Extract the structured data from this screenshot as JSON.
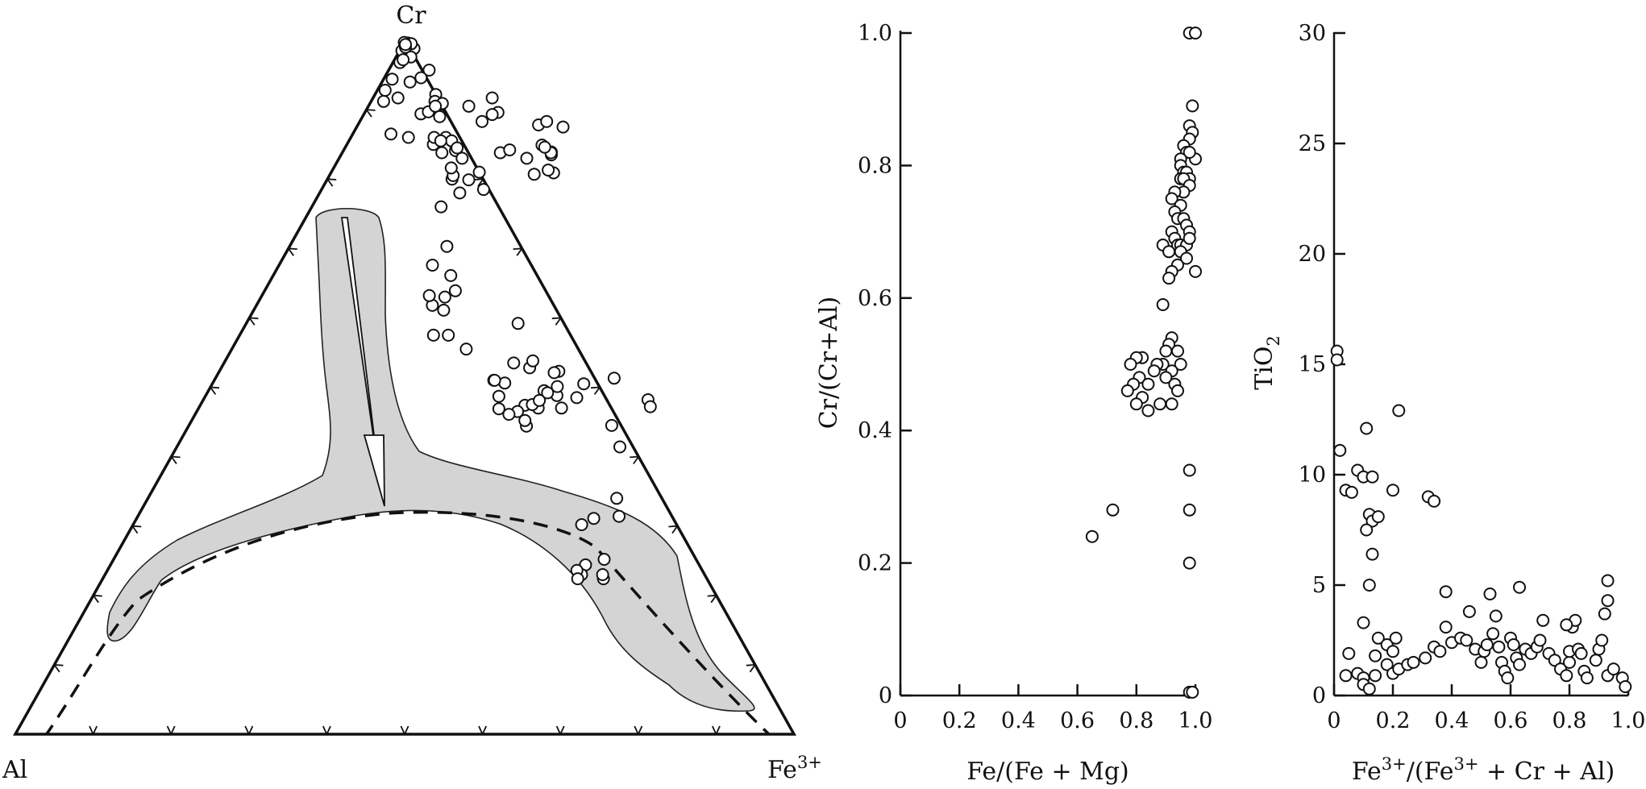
{
  "ternary": {
    "apex_top": "Cr",
    "apex_left": "Al",
    "apex_right": "Fe",
    "apex_right_sup": "3+"
  },
  "scatter1": {
    "ylabel": "Cr/(Cr+Al)",
    "xlabel": "Fe/(Fe + Mg)"
  },
  "scatter2": {
    "ylabel_main": "TiO",
    "ylabel_sub": "2",
    "xlabel_p1": "Fe",
    "xlabel_s1": "3+",
    "xlabel_p2": "/(Fe",
    "xlabel_s2": "3+",
    "xlabel_p3": " + Cr + Al)"
  },
  "chart_data": [
    {
      "type": "scatter",
      "subtype": "ternary",
      "vertices": {
        "top": "Cr",
        "left": "Al",
        "right": "Fe3+"
      },
      "grid": false,
      "points": [
        [
          0.643,
          0.224
        ],
        [
          0.639,
          0.23
        ],
        [
          0.618,
          0.314
        ],
        [
          0.602,
          0.34
        ],
        [
          0.587,
          0.311
        ],
        [
          0.576,
          0.302
        ],
        [
          0.61,
          0.244
        ],
        [
          0.63,
          0.252
        ],
        [
          0.612,
          0.23
        ],
        [
          0.603,
          0.236
        ],
        [
          0.61,
          0.224
        ],
        [
          0.434,
          0.444
        ],
        [
          0.428,
          0.452
        ],
        [
          0.436,
          0.47
        ],
        [
          0.451,
          0.488
        ],
        [
          0.477,
          0.505
        ],
        [
          0.512,
          0.513
        ],
        [
          0.571,
          0.482
        ],
        [
          0.579,
          0.472
        ],
        [
          0.569,
          0.414
        ],
        [
          0.543,
          0.445
        ],
        [
          0.466,
          0.47
        ],
        [
          0.478,
          0.485
        ],
        [
          0.436,
          0.523
        ],
        [
          0.431,
          0.521
        ],
        [
          0.445,
          0.501
        ],
        [
          0.431,
          0.495
        ],
        [
          0.437,
          0.492
        ],
        [
          0.417,
          0.474
        ],
        [
          0.426,
          0.475
        ],
        [
          0.432,
          0.481
        ],
        [
          0.412,
          0.465
        ],
        [
          0.403,
          0.461
        ],
        [
          0.386,
          0.469
        ],
        [
          0.377,
          0.487
        ],
        [
          0.375,
          0.506
        ],
        [
          0.396,
          0.528
        ],
        [
          0.372,
          0.535
        ],
        [
          0.359,
          0.51
        ],
        [
          0.36,
          0.51
        ],
        [
          0.395,
          0.538
        ],
        [
          0.349,
          0.592
        ],
        [
          0.301,
          0.555
        ],
        [
          0.268,
          0.575
        ],
        [
          0.249,
          0.575
        ],
        [
          0.244,
          0.611
        ],
        [
          0.236,
          0.63
        ],
        [
          0.245,
          0.639
        ],
        [
          0.226,
          0.618
        ],
        [
          0.215,
          0.632
        ],
        [
          0.228,
          0.661
        ],
        [
          0.197,
          0.676
        ],
        [
          0.202,
          0.703
        ],
        [
          0.166,
          0.76
        ],
        [
          0.16,
          0.8
        ],
        [
          0.18,
          0.78
        ],
        [
          0.182,
          0.799
        ],
        [
          0.159,
          0.805
        ],
        [
          0.151,
          0.816
        ],
        [
          0.144,
          0.841
        ],
        [
          0.158,
          0.83
        ],
        [
          0.203,
          0.838
        ],
        [
          0.213,
          0.842
        ],
        [
          0.241,
          0.83
        ],
        [
          0.232,
          0.878
        ],
        [
          0.251,
          0.849
        ],
        [
          0.24,
          0.883
        ],
        [
          0.265,
          0.875
        ],
        [
          0.27,
          0.835
        ],
        [
          0.268,
          0.839
        ],
        [
          0.286,
          0.809
        ],
        [
          0.268,
          0.838
        ],
        [
          0.256,
          0.846
        ],
        [
          0.277,
          0.813
        ],
        [
          0.262,
          0.807
        ],
        [
          0.157,
          0.883
        ],
        [
          0.171,
          0.896
        ],
        [
          0.165,
          0.893
        ],
        [
          0.153,
          0.917
        ],
        [
          0.129,
          0.905
        ],
        [
          0.073,
          0.894
        ],
        [
          0.074,
          0.86
        ],
        [
          0.049,
          0.865
        ],
        [
          0.016,
          0.912
        ],
        [
          0.011,
          0.944
        ],
        [
          0.009,
          0.968
        ],
        [
          0.052,
          0.957
        ],
        [
          0.047,
          0.946
        ],
        [
          0.017,
          0.988
        ],
        [
          0.019,
          0.976
        ],
        [
          0.003,
          0.985
        ],
        [
          0.011,
          0.972
        ],
        [
          0.005,
          0.996
        ],
        [
          0.036,
          0.94
        ],
        [
          0.032,
          0.917
        ],
        [
          0.01,
          0.928
        ],
        [
          0.078,
          0.922
        ],
        [
          0.082,
          0.912
        ],
        [
          0.093,
          0.909
        ],
        [
          0.081,
          0.897
        ],
        [
          0.086,
          0.905
        ],
        [
          0.099,
          0.89
        ],
        [
          0.122,
          0.86
        ],
        [
          0.132,
          0.855
        ],
        [
          0.144,
          0.845
        ],
        [
          0.128,
          0.838
        ],
        [
          0.111,
          0.85
        ],
        [
          0.107,
          0.86
        ],
        [
          0.118,
          0.855
        ],
        [
          0.19,
          0.81
        ],
        [
          0.208,
          0.785
        ],
        [
          0.01,
          0.995
        ],
        [
          0.005,
          0.99
        ],
        [
          0.0,
          0.997
        ],
        [
          0.003,
          0.994
        ]
      ],
      "shaded_field": "gray envelope",
      "trend": "dashed curve",
      "arrow": "downward"
    },
    {
      "type": "scatter",
      "xlabel": "Fe/(Fe + Mg)",
      "ylabel": "Cr/(Cr+Al)",
      "xlim": [
        0,
        1.0
      ],
      "ylim": [
        0,
        1.0
      ],
      "x_ticks": [
        "0",
        "0.2",
        "0.4",
        "0.6",
        "0.8",
        "1.0"
      ],
      "y_ticks": [
        "0",
        "0.2",
        "0.4",
        "0.6",
        "0.8",
        "1.0"
      ],
      "grid": false,
      "points": [
        [
          0.98,
          1.0
        ],
        [
          1.0,
          1.0
        ],
        [
          0.99,
          0.89
        ],
        [
          0.98,
          0.86
        ],
        [
          0.99,
          0.85
        ],
        [
          0.98,
          0.84
        ],
        [
          1.0,
          0.81
        ],
        [
          0.96,
          0.83
        ],
        [
          0.97,
          0.82
        ],
        [
          0.98,
          0.82
        ],
        [
          0.95,
          0.81
        ],
        [
          0.95,
          0.8
        ],
        [
          0.96,
          0.79
        ],
        [
          0.97,
          0.79
        ],
        [
          0.98,
          0.78
        ],
        [
          0.95,
          0.78
        ],
        [
          0.96,
          0.78
        ],
        [
          0.98,
          0.77
        ],
        [
          0.96,
          0.76
        ],
        [
          0.93,
          0.76
        ],
        [
          0.92,
          0.75
        ],
        [
          0.95,
          0.74
        ],
        [
          0.93,
          0.73
        ],
        [
          0.94,
          0.72
        ],
        [
          0.96,
          0.72
        ],
        [
          0.97,
          0.71
        ],
        [
          0.98,
          0.7
        ],
        [
          0.92,
          0.7
        ],
        [
          0.93,
          0.69
        ],
        [
          0.94,
          0.68
        ],
        [
          0.95,
          0.68
        ],
        [
          0.97,
          0.68
        ],
        [
          0.98,
          0.69
        ],
        [
          0.89,
          0.68
        ],
        [
          0.91,
          0.67
        ],
        [
          0.95,
          0.67
        ],
        [
          0.97,
          0.66
        ],
        [
          0.94,
          0.65
        ],
        [
          0.92,
          0.64
        ],
        [
          1.0,
          0.64
        ],
        [
          0.91,
          0.63
        ],
        [
          0.89,
          0.59
        ],
        [
          0.92,
          0.54
        ],
        [
          0.91,
          0.53
        ],
        [
          0.9,
          0.52
        ],
        [
          0.94,
          0.52
        ],
        [
          0.89,
          0.5
        ],
        [
          0.95,
          0.5
        ],
        [
          0.87,
          0.5
        ],
        [
          0.82,
          0.51
        ],
        [
          0.8,
          0.51
        ],
        [
          0.78,
          0.5
        ],
        [
          0.92,
          0.49
        ],
        [
          0.86,
          0.49
        ],
        [
          0.9,
          0.48
        ],
        [
          0.81,
          0.48
        ],
        [
          0.79,
          0.47
        ],
        [
          0.93,
          0.47
        ],
        [
          0.84,
          0.47
        ],
        [
          0.94,
          0.46
        ],
        [
          0.77,
          0.46
        ],
        [
          0.82,
          0.45
        ],
        [
          0.88,
          0.44
        ],
        [
          0.92,
          0.44
        ],
        [
          0.8,
          0.44
        ],
        [
          0.84,
          0.43
        ],
        [
          0.98,
          0.34
        ],
        [
          0.72,
          0.28
        ],
        [
          0.98,
          0.28
        ],
        [
          0.65,
          0.24
        ],
        [
          0.98,
          0.2
        ],
        [
          0.98,
          0.005
        ],
        [
          0.99,
          0.005
        ]
      ]
    },
    {
      "type": "scatter",
      "xlabel": "Fe3+/(Fe3+ + Cr + Al)",
      "ylabel": "TiO2",
      "xlim": [
        0,
        1.0
      ],
      "ylim": [
        0,
        30
      ],
      "x_ticks": [
        "0",
        "0.2",
        "0.4",
        "0.6",
        "0.8",
        "1.0"
      ],
      "y_ticks": [
        "0",
        "5",
        "10",
        "15",
        "20",
        "25",
        "30"
      ],
      "grid": false,
      "points": [
        [
          0.01,
          15.6
        ],
        [
          0.01,
          15.2
        ],
        [
          0.02,
          11.1
        ],
        [
          0.11,
          12.1
        ],
        [
          0.22,
          12.9
        ],
        [
          0.04,
          9.3
        ],
        [
          0.06,
          9.2
        ],
        [
          0.08,
          10.2
        ],
        [
          0.1,
          9.9
        ],
        [
          0.13,
          9.9
        ],
        [
          0.2,
          9.3
        ],
        [
          0.32,
          9.0
        ],
        [
          0.34,
          8.8
        ],
        [
          0.12,
          8.2
        ],
        [
          0.13,
          7.9
        ],
        [
          0.15,
          8.1
        ],
        [
          0.11,
          7.5
        ],
        [
          0.13,
          6.4
        ],
        [
          0.12,
          5.0
        ],
        [
          0.1,
          3.3
        ],
        [
          0.38,
          4.7
        ],
        [
          0.53,
          4.6
        ],
        [
          0.63,
          4.9
        ],
        [
          0.93,
          5.2
        ],
        [
          0.93,
          4.3
        ],
        [
          0.05,
          1.9
        ],
        [
          0.04,
          0.9
        ],
        [
          0.08,
          1.0
        ],
        [
          0.1,
          0.8
        ],
        [
          0.1,
          0.5
        ],
        [
          0.12,
          0.3
        ],
        [
          0.14,
          0.9
        ],
        [
          0.14,
          1.8
        ],
        [
          0.15,
          2.6
        ],
        [
          0.18,
          2.3
        ],
        [
          0.2,
          2.0
        ],
        [
          0.21,
          2.6
        ],
        [
          0.18,
          1.4
        ],
        [
          0.2,
          1.0
        ],
        [
          0.22,
          1.2
        ],
        [
          0.25,
          1.4
        ],
        [
          0.27,
          1.5
        ],
        [
          0.31,
          1.7
        ],
        [
          0.34,
          2.2
        ],
        [
          0.36,
          2.0
        ],
        [
          0.38,
          3.1
        ],
        [
          0.4,
          2.4
        ],
        [
          0.43,
          2.6
        ],
        [
          0.45,
          2.5
        ],
        [
          0.46,
          3.8
        ],
        [
          0.48,
          2.1
        ],
        [
          0.5,
          1.5
        ],
        [
          0.51,
          2.0
        ],
        [
          0.52,
          2.3
        ],
        [
          0.54,
          2.8
        ],
        [
          0.55,
          3.6
        ],
        [
          0.56,
          2.2
        ],
        [
          0.57,
          1.5
        ],
        [
          0.58,
          1.1
        ],
        [
          0.59,
          0.8
        ],
        [
          0.6,
          2.6
        ],
        [
          0.61,
          2.3
        ],
        [
          0.62,
          1.7
        ],
        [
          0.63,
          1.4
        ],
        [
          0.65,
          2.1
        ],
        [
          0.67,
          1.9
        ],
        [
          0.69,
          2.2
        ],
        [
          0.7,
          2.5
        ],
        [
          0.71,
          3.4
        ],
        [
          0.73,
          1.9
        ],
        [
          0.75,
          1.6
        ],
        [
          0.77,
          1.2
        ],
        [
          0.79,
          0.9
        ],
        [
          0.8,
          1.5
        ],
        [
          0.8,
          2.0
        ],
        [
          0.81,
          3.1
        ],
        [
          0.82,
          3.4
        ],
        [
          0.83,
          2.1
        ],
        [
          0.84,
          1.9
        ],
        [
          0.85,
          1.1
        ],
        [
          0.86,
          0.8
        ],
        [
          0.89,
          1.6
        ],
        [
          0.9,
          2.1
        ],
        [
          0.91,
          2.5
        ],
        [
          0.92,
          3.7
        ],
        [
          0.93,
          0.9
        ],
        [
          0.95,
          1.2
        ],
        [
          0.98,
          0.8
        ],
        [
          0.99,
          0.4
        ],
        [
          0.79,
          3.2
        ]
      ]
    }
  ]
}
